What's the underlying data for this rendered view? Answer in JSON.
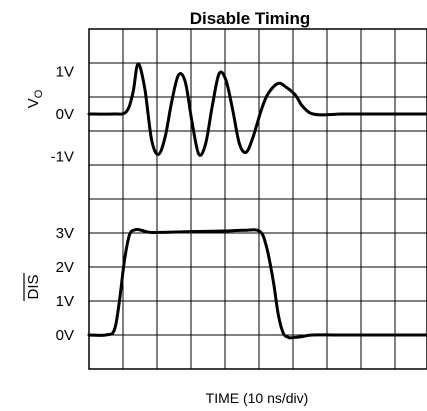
{
  "chart_data": {
    "type": "line",
    "title": "Disable Timing",
    "xlabel": "TIME (10 ns/div)",
    "x_divisions": 10,
    "grid": true,
    "panels": [
      {
        "ylabel": "V",
        "ylabel_subscript": "O",
        "y_ticks": [
          {
            "value": 1,
            "label": "1V"
          },
          {
            "value": 0,
            "label": "0V"
          },
          {
            "value": -1,
            "label": "-1V"
          }
        ],
        "ylim": [
          -2.0,
          2.0
        ],
        "series": [
          {
            "x": [
              0,
              0.7,
              1.1,
              1.3,
              1.45,
              1.65,
              1.85,
              2.05,
              2.25,
              2.45,
              2.65,
              2.85,
              3.05,
              3.25,
              3.45,
              3.65,
              3.85,
              4.05,
              4.25,
              4.45,
              4.65,
              4.85,
              5.1,
              5.3,
              5.6,
              5.85,
              6.1,
              6.3,
              6.55,
              6.9,
              7.5,
              8.5,
              10
            ],
            "y": [
              0,
              0,
              0.05,
              0.5,
              1.18,
              0.6,
              -0.6,
              -0.95,
              -0.55,
              0.3,
              0.92,
              0.75,
              -0.2,
              -0.95,
              -0.7,
              0.2,
              0.95,
              0.8,
              0.1,
              -0.7,
              -0.9,
              -0.55,
              0.1,
              0.48,
              0.72,
              0.62,
              0.45,
              0.2,
              0.02,
              -0.02,
              0,
              0,
              0
            ]
          }
        ]
      },
      {
        "ylabel": "DIS",
        "ylabel_overline": true,
        "y_ticks": [
          {
            "value": 3,
            "label": "3V"
          },
          {
            "value": 2,
            "label": "2V"
          },
          {
            "value": 1,
            "label": "1V"
          },
          {
            "value": 0,
            "label": "0V"
          }
        ],
        "ylim": [
          -1.0,
          4.0
        ],
        "series": [
          {
            "x": [
              0,
              0.5,
              0.75,
              0.9,
              1.05,
              1.2,
              1.38,
              1.55,
              1.8,
              2.2,
              3.0,
              4.0,
              4.6,
              5.05,
              5.25,
              5.45,
              5.6,
              5.75,
              5.9,
              6.0,
              6.3,
              6.6,
              7.5,
              10
            ],
            "y": [
              0,
              0,
              0.15,
              1.0,
              2.2,
              2.95,
              3.1,
              3.08,
              3.02,
              3.02,
              3.04,
              3.06,
              3.08,
              3.05,
              2.6,
              1.6,
              0.6,
              0.05,
              -0.07,
              -0.08,
              -0.05,
              0,
              0,
              0
            ]
          }
        ]
      }
    ]
  }
}
